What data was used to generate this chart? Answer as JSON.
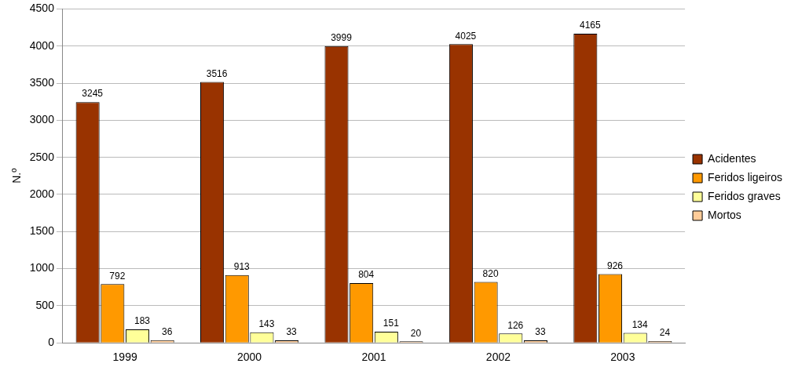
{
  "chart_data": {
    "type": "bar",
    "ylabel": "N.º",
    "categories": [
      "1999",
      "2000",
      "2001",
      "2002",
      "2003"
    ],
    "series": [
      {
        "name": "Acidentes",
        "color": "#993300",
        "values": [
          3245,
          3516,
          3999,
          4025,
          4165
        ]
      },
      {
        "name": "Feridos ligeiros",
        "color": "#ff9900",
        "values": [
          792,
          913,
          804,
          820,
          926
        ]
      },
      {
        "name": "Feridos graves",
        "color": "#ffff99",
        "values": [
          183,
          143,
          151,
          126,
          134
        ]
      },
      {
        "name": "Mortos",
        "color": "#ffcc99",
        "values": [
          36,
          33,
          20,
          33,
          24
        ]
      }
    ],
    "ylim": [
      0,
      4500
    ],
    "yticks": [
      0,
      500,
      1000,
      1500,
      2000,
      2500,
      3000,
      3500,
      4000,
      4500
    ],
    "grid": "y",
    "legend": "right",
    "data_labels": true
  }
}
